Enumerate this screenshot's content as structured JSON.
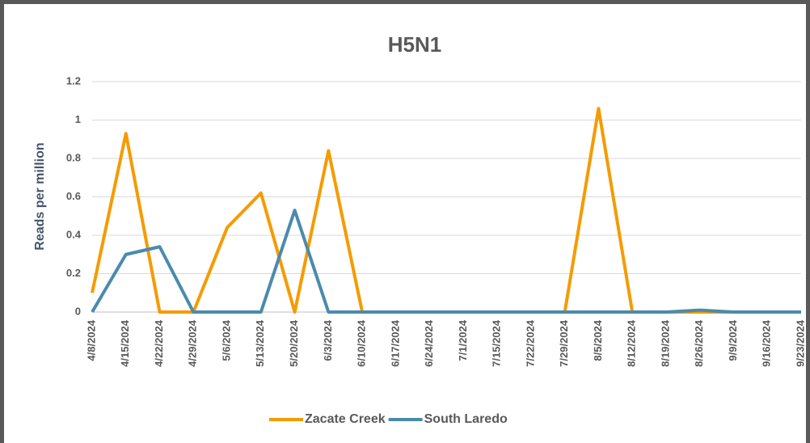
{
  "chart_data": {
    "type": "line",
    "title": "H5N1",
    "y_label": "Reads per million",
    "categories": [
      "4/8/2024",
      "4/15/2024",
      "4/22/2024",
      "4/29/2024",
      "5/6/2024",
      "5/13/2024",
      "5/20/2024",
      "6/3/2024",
      "6/10/2024",
      "6/17/2024",
      "6/24/2024",
      "7/1/2024",
      "7/15/2024",
      "7/22/2024",
      "7/29/2024",
      "8/5/2024",
      "8/12/2024",
      "8/19/2024",
      "8/26/2024",
      "9/9/2024",
      "9/16/2024",
      "9/23/2024"
    ],
    "series": [
      {
        "name": "Zacate Creek",
        "color": "#f59b00",
        "values": [
          0.1,
          0.93,
          0,
          0,
          0.44,
          0.62,
          0,
          0.84,
          0,
          0,
          0,
          0,
          0,
          0,
          0,
          1.06,
          0,
          0,
          0,
          0,
          0,
          0
        ]
      },
      {
        "name": "South Laredo",
        "color": "#4a8bad",
        "values": [
          0,
          0.3,
          0.34,
          0,
          0,
          0,
          0.53,
          0,
          0,
          0,
          0,
          0,
          0,
          0,
          0,
          0,
          0,
          0,
          0.01,
          0,
          0,
          0
        ]
      }
    ],
    "ylim": [
      0,
      1.2
    ],
    "yticks": [
      0,
      0.2,
      0.4,
      0.6,
      0.8,
      1,
      1.2
    ],
    "grid": true,
    "legend": "bottom"
  }
}
